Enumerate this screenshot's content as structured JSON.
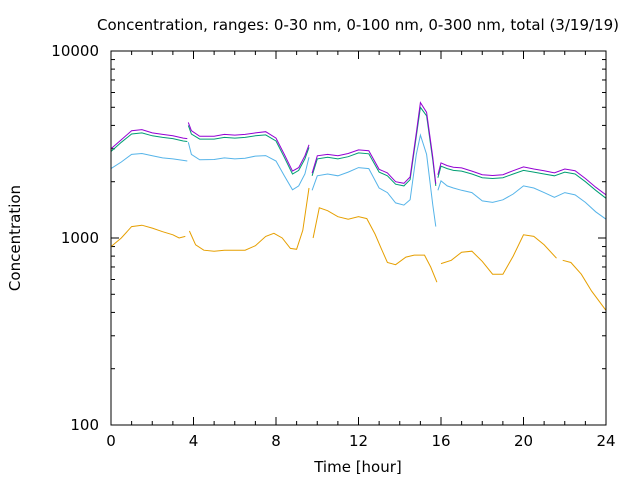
{
  "chart_data": {
    "type": "line",
    "title": "Concentration, ranges: 0-30 nm, 0-100 nm, 0-300 nm, total (3/19/19)",
    "xlabel": "Time [hour]",
    "ylabel": "Concentration",
    "xlim": [
      0,
      24
    ],
    "ylim": [
      100,
      10000
    ],
    "yscale": "log",
    "xticks": [
      0,
      4,
      8,
      12,
      16,
      20,
      24
    ],
    "xtick_labels": [
      "0",
      "4",
      "8",
      "12",
      "16",
      "20",
      "24"
    ],
    "yticks": [
      100,
      1000,
      10000
    ],
    "ytick_labels": [
      "100",
      "1000",
      "10000"
    ],
    "grid": false,
    "legend": "none",
    "series": [
      {
        "color": "#e69f00",
        "segments": [
          [
            [
              0,
              900
            ],
            [
              0.5,
              1000
            ],
            [
              1,
              1150
            ],
            [
              1.5,
              1170
            ],
            [
              2,
              1130
            ],
            [
              2.5,
              1080
            ],
            [
              3,
              1040
            ],
            [
              3.3,
              1000
            ],
            [
              3.6,
              1020
            ]
          ],
          [
            [
              3.8,
              1090
            ],
            [
              4.1,
              920
            ],
            [
              4.5,
              860
            ],
            [
              5,
              850
            ],
            [
              5.5,
              860
            ],
            [
              6,
              860
            ],
            [
              6.5,
              860
            ],
            [
              7,
              910
            ],
            [
              7.5,
              1020
            ],
            [
              7.9,
              1060
            ],
            [
              8.3,
              1000
            ],
            [
              8.7,
              880
            ],
            [
              9,
              870
            ],
            [
              9.3,
              1100
            ],
            [
              9.6,
              1850
            ]
          ],
          [
            [
              9.8,
              1000
            ],
            [
              10.1,
              1450
            ],
            [
              10.5,
              1400
            ],
            [
              11,
              1300
            ],
            [
              11.5,
              1260
            ],
            [
              12,
              1300
            ],
            [
              12.4,
              1270
            ],
            [
              12.8,
              1050
            ],
            [
              13.1,
              880
            ],
            [
              13.4,
              740
            ],
            [
              13.8,
              720
            ],
            [
              14.3,
              790
            ],
            [
              14.7,
              810
            ],
            [
              15.2,
              810
            ],
            [
              15.5,
              700
            ],
            [
              15.8,
              580
            ]
          ],
          [
            [
              16,
              730
            ],
            [
              16.5,
              760
            ],
            [
              17,
              840
            ],
            [
              17.5,
              850
            ],
            [
              18,
              750
            ],
            [
              18.5,
              640
            ],
            [
              19,
              640
            ],
            [
              19.5,
              800
            ],
            [
              20,
              1040
            ],
            [
              20.5,
              1020
            ],
            [
              21,
              920
            ],
            [
              21.6,
              780
            ]
          ],
          [
            [
              21.9,
              760
            ],
            [
              22.3,
              740
            ],
            [
              22.8,
              640
            ],
            [
              23.3,
              520
            ],
            [
              24,
              410
            ]
          ]
        ]
      },
      {
        "color": "#56b4e9",
        "segments": [
          [
            [
              0,
              2350
            ],
            [
              0.5,
              2550
            ],
            [
              1,
              2800
            ],
            [
              1.5,
              2830
            ],
            [
              2,
              2750
            ],
            [
              2.5,
              2680
            ],
            [
              3,
              2650
            ],
            [
              3.5,
              2600
            ],
            [
              3.7,
              2580
            ]
          ],
          [
            [
              3.75,
              3250
            ],
            [
              3.9,
              2800
            ],
            [
              4.3,
              2620
            ],
            [
              5,
              2630
            ],
            [
              5.5,
              2680
            ],
            [
              6,
              2650
            ],
            [
              6.5,
              2670
            ],
            [
              7,
              2740
            ],
            [
              7.5,
              2760
            ],
            [
              8,
              2580
            ],
            [
              8.4,
              2150
            ],
            [
              8.8,
              1810
            ],
            [
              9.1,
              1900
            ],
            [
              9.4,
              2200
            ],
            [
              9.6,
              2700
            ]
          ],
          [
            [
              9.75,
              1800
            ],
            [
              10,
              2150
            ],
            [
              10.5,
              2200
            ],
            [
              11,
              2150
            ],
            [
              11.5,
              2250
            ],
            [
              12,
              2380
            ],
            [
              12.5,
              2350
            ],
            [
              13,
              1850
            ],
            [
              13.4,
              1750
            ],
            [
              13.8,
              1540
            ],
            [
              14.2,
              1500
            ],
            [
              14.5,
              1600
            ],
            [
              14.8,
              2800
            ],
            [
              15,
              3550
            ],
            [
              15.3,
              2800
            ],
            [
              15.6,
              1500
            ],
            [
              15.75,
              1150
            ]
          ],
          [
            [
              15.85,
              1800
            ],
            [
              16,
              2020
            ],
            [
              16.3,
              1900
            ],
            [
              16.6,
              1850
            ],
            [
              17,
              1800
            ],
            [
              17.5,
              1750
            ],
            [
              18,
              1580
            ],
            [
              18.5,
              1550
            ],
            [
              19,
              1600
            ],
            [
              19.5,
              1720
            ],
            [
              20,
              1900
            ],
            [
              20.5,
              1850
            ],
            [
              21,
              1750
            ],
            [
              21.5,
              1650
            ],
            [
              22,
              1750
            ],
            [
              22.5,
              1700
            ],
            [
              23,
              1550
            ],
            [
              23.5,
              1380
            ],
            [
              24,
              1260
            ]
          ]
        ]
      },
      {
        "color": "#009e73",
        "segments": [
          [
            [
              0,
              2900
            ],
            [
              0.5,
              3250
            ],
            [
              1,
              3600
            ],
            [
              1.5,
              3650
            ],
            [
              2,
              3520
            ],
            [
              2.5,
              3450
            ],
            [
              3,
              3400
            ],
            [
              3.5,
              3300
            ],
            [
              3.7,
              3280
            ]
          ],
          [
            [
              3.75,
              4000
            ],
            [
              3.9,
              3600
            ],
            [
              4.3,
              3380
            ],
            [
              5,
              3380
            ],
            [
              5.5,
              3450
            ],
            [
              6,
              3420
            ],
            [
              6.5,
              3450
            ],
            [
              7,
              3520
            ],
            [
              7.5,
              3560
            ],
            [
              8,
              3300
            ],
            [
              8.4,
              2700
            ],
            [
              8.8,
              2200
            ],
            [
              9.1,
              2300
            ],
            [
              9.4,
              2650
            ],
            [
              9.6,
              3050
            ]
          ],
          [
            [
              9.75,
              2150
            ],
            [
              10,
              2650
            ],
            [
              10.5,
              2700
            ],
            [
              11,
              2650
            ],
            [
              11.5,
              2720
            ],
            [
              12,
              2850
            ],
            [
              12.5,
              2820
            ],
            [
              13,
              2250
            ],
            [
              13.4,
              2150
            ],
            [
              13.8,
              1940
            ],
            [
              14.2,
              1900
            ],
            [
              14.5,
              2050
            ],
            [
              14.8,
              3500
            ],
            [
              15,
              5000
            ],
            [
              15.3,
              4500
            ],
            [
              15.6,
              2600
            ],
            [
              15.75,
              1900
            ]
          ],
          [
            [
              15.85,
              2100
            ],
            [
              16,
              2420
            ],
            [
              16.3,
              2350
            ],
            [
              16.6,
              2300
            ],
            [
              17,
              2280
            ],
            [
              17.5,
              2200
            ],
            [
              18,
              2100
            ],
            [
              18.5,
              2080
            ],
            [
              19,
              2100
            ],
            [
              19.5,
              2200
            ],
            [
              20,
              2300
            ],
            [
              20.5,
              2250
            ],
            [
              21,
              2200
            ],
            [
              21.5,
              2150
            ],
            [
              22,
              2250
            ],
            [
              22.5,
              2200
            ],
            [
              23,
              2000
            ],
            [
              23.5,
              1800
            ],
            [
              24,
              1630
            ]
          ]
        ]
      },
      {
        "color": "#9400d3",
        "segments": [
          [
            [
              0,
              3000
            ],
            [
              0.5,
              3350
            ],
            [
              1,
              3750
            ],
            [
              1.5,
              3800
            ],
            [
              2,
              3650
            ],
            [
              2.5,
              3580
            ],
            [
              3,
              3520
            ],
            [
              3.5,
              3420
            ],
            [
              3.7,
              3400
            ]
          ],
          [
            [
              3.75,
              4150
            ],
            [
              3.9,
              3750
            ],
            [
              4.3,
              3500
            ],
            [
              5,
              3500
            ],
            [
              5.5,
              3580
            ],
            [
              6,
              3550
            ],
            [
              6.5,
              3580
            ],
            [
              7,
              3650
            ],
            [
              7.5,
              3700
            ],
            [
              8,
              3420
            ],
            [
              8.4,
              2800
            ],
            [
              8.8,
              2280
            ],
            [
              9.1,
              2380
            ],
            [
              9.4,
              2750
            ],
            [
              9.6,
              3150
            ]
          ],
          [
            [
              9.75,
              2220
            ],
            [
              10,
              2750
            ],
            [
              10.5,
              2800
            ],
            [
              11,
              2750
            ],
            [
              11.5,
              2830
            ],
            [
              12,
              2960
            ],
            [
              12.5,
              2930
            ],
            [
              13,
              2330
            ],
            [
              13.4,
              2230
            ],
            [
              13.8,
              2000
            ],
            [
              14.2,
              1960
            ],
            [
              14.5,
              2120
            ],
            [
              14.8,
              3650
            ],
            [
              15,
              5300
            ],
            [
              15.3,
              4700
            ],
            [
              15.6,
              2700
            ],
            [
              15.75,
              1950
            ]
          ],
          [
            [
              15.85,
              2180
            ],
            [
              16,
              2520
            ],
            [
              16.3,
              2440
            ],
            [
              16.6,
              2390
            ],
            [
              17,
              2370
            ],
            [
              17.5,
              2280
            ],
            [
              18,
              2180
            ],
            [
              18.5,
              2160
            ],
            [
              19,
              2180
            ],
            [
              19.5,
              2290
            ],
            [
              20,
              2400
            ],
            [
              20.5,
              2340
            ],
            [
              21,
              2290
            ],
            [
              21.5,
              2230
            ],
            [
              22,
              2340
            ],
            [
              22.5,
              2290
            ],
            [
              23,
              2080
            ],
            [
              23.5,
              1870
            ],
            [
              24,
              1700
            ]
          ]
        ]
      }
    ]
  }
}
